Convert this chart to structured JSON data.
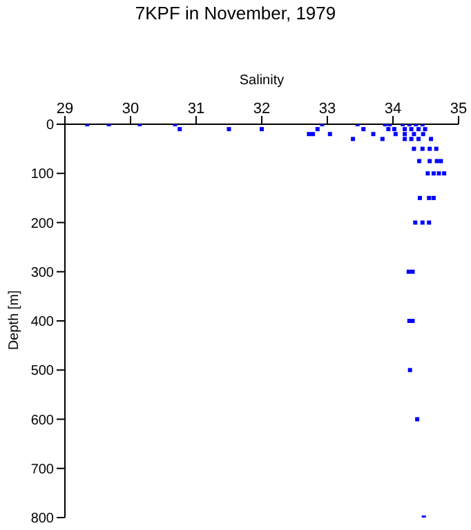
{
  "chart_data": {
    "type": "scatter",
    "title": "7KPF in November, 1979",
    "xlabel": "Salinity",
    "ylabel": "Depth [m]",
    "xlim": [
      29,
      35
    ],
    "xticks": [
      29,
      30,
      31,
      32,
      33,
      34,
      35
    ],
    "ylim": [
      800,
      0
    ],
    "yticks": [
      0,
      100,
      200,
      300,
      400,
      500,
      600,
      700,
      800
    ],
    "grid": false,
    "marker": "square",
    "series": [
      {
        "color": "#0000ff",
        "x": [
          29.34,
          29.67,
          30.14,
          30.68,
          32.92,
          33.46,
          33.88,
          33.95,
          34.15,
          34.25,
          34.35,
          34.45,
          30.75,
          31.5,
          32.0,
          32.85,
          33.55,
          33.93,
          34.02,
          34.18,
          34.28,
          34.39,
          34.49,
          32.72,
          32.78,
          33.04,
          33.7,
          34.04,
          34.18,
          34.32,
          34.46,
          33.39,
          33.84,
          34.18,
          34.28,
          34.39,
          34.58,
          34.32,
          34.45,
          34.56,
          34.66,
          34.4,
          34.56,
          34.67,
          34.73,
          34.53,
          34.62,
          34.7,
          34.78,
          34.41,
          34.55,
          34.62,
          34.34,
          34.45,
          34.55,
          34.24,
          34.3,
          34.25,
          34.3,
          34.26,
          34.37,
          34.47
        ],
        "values": [
          0,
          0,
          0,
          0,
          0,
          0,
          0,
          0,
          0,
          0,
          0,
          0,
          10,
          10,
          10,
          10,
          10,
          10,
          10,
          10,
          10,
          10,
          10,
          20,
          20,
          20,
          20,
          20,
          20,
          20,
          20,
          30,
          30,
          30,
          30,
          30,
          30,
          50,
          50,
          50,
          50,
          75,
          75,
          75,
          75,
          100,
          100,
          100,
          100,
          150,
          150,
          150,
          200,
          200,
          200,
          300,
          300,
          400,
          400,
          500,
          600,
          800
        ]
      }
    ]
  }
}
